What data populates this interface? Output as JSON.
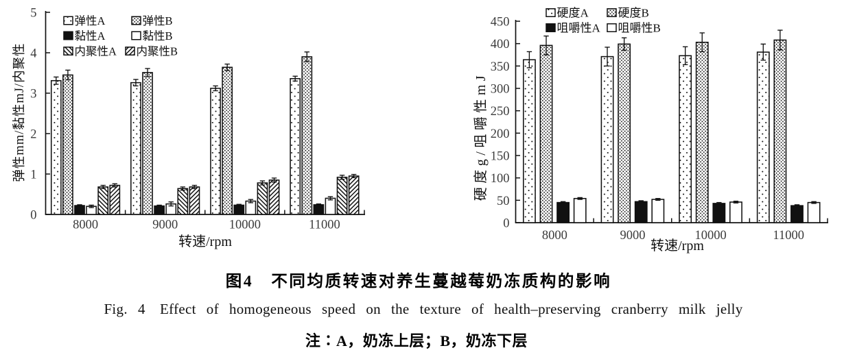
{
  "figure": {
    "caption_zh": "图4　不同均质转速对养生蔓越莓奶冻质构的影响",
    "caption_en": "Fig. 4　Effect of homogeneous speed on the texture of health–preserving cranberry milk jelly",
    "caption_note": "注∶A，奶冻上层；B，奶冻下层"
  },
  "colors": {
    "ink": "#111111",
    "tick_label": "#3b3b3b",
    "background": "#ffffff"
  },
  "chart_data": [
    {
      "type": "bar",
      "title": "",
      "xlabel": "转速/rpm",
      "ylabel": "弹性mm/黏性mJ/内聚性",
      "categories": [
        "8000",
        "9000",
        "10000",
        "11000"
      ],
      "ylim": [
        0,
        5
      ],
      "yticks": [
        0,
        1,
        2,
        3,
        4,
        5
      ],
      "grid": false,
      "legend_position": "top-left-inside",
      "series": [
        {
          "name": "弹性A",
          "pattern": "dot-sparse",
          "values": [
            3.31,
            3.26,
            3.12,
            3.36
          ],
          "errors": [
            0.09,
            0.08,
            0.06,
            0.06
          ]
        },
        {
          "name": "弹性B",
          "pattern": "dot-dense",
          "values": [
            3.45,
            3.51,
            3.64,
            3.9
          ],
          "errors": [
            0.12,
            0.1,
            0.08,
            0.12
          ]
        },
        {
          "name": "黏性A",
          "pattern": "solid-black",
          "values": [
            0.22,
            0.21,
            0.23,
            0.24
          ],
          "errors": [
            0.02,
            0.02,
            0.02,
            0.02
          ]
        },
        {
          "name": "黏性B",
          "pattern": "plain-white",
          "values": [
            0.2,
            0.26,
            0.33,
            0.4
          ],
          "errors": [
            0.03,
            0.05,
            0.04,
            0.04
          ]
        },
        {
          "name": "内聚性A",
          "pattern": "hatch-back",
          "values": [
            0.68,
            0.64,
            0.78,
            0.92
          ],
          "errors": [
            0.04,
            0.04,
            0.05,
            0.05
          ]
        },
        {
          "name": "内聚性B",
          "pattern": "hatch-fwd",
          "values": [
            0.72,
            0.68,
            0.85,
            0.95
          ],
          "errors": [
            0.04,
            0.04,
            0.05,
            0.04
          ]
        }
      ]
    },
    {
      "type": "bar",
      "title": "",
      "xlabel": "转速/rpm",
      "ylabel": "硬度g/咀嚼性mJ",
      "categories": [
        "8000",
        "9000",
        "10000",
        "11000"
      ],
      "ylim": [
        0,
        450
      ],
      "yticks": [
        0,
        50,
        100,
        150,
        200,
        250,
        300,
        350,
        400,
        450
      ],
      "grid": false,
      "legend_position": "top-left-inside",
      "series": [
        {
          "name": "硬度A",
          "pattern": "dot-sparse",
          "values": [
            364,
            371,
            373,
            381
          ],
          "errors": [
            18,
            21,
            20,
            18
          ]
        },
        {
          "name": "硬度B",
          "pattern": "dot-dense",
          "values": [
            396,
            399,
            403,
            408
          ],
          "errors": [
            21,
            14,
            21,
            22
          ]
        },
        {
          "name": "咀嚼性A",
          "pattern": "solid-black",
          "values": [
            45,
            47,
            43,
            38
          ],
          "errors": [
            2,
            2,
            2,
            2
          ]
        },
        {
          "name": "咀嚼性B",
          "pattern": "plain-white",
          "values": [
            54,
            52,
            46,
            45
          ],
          "errors": [
            2,
            2,
            2,
            2
          ]
        }
      ]
    }
  ]
}
